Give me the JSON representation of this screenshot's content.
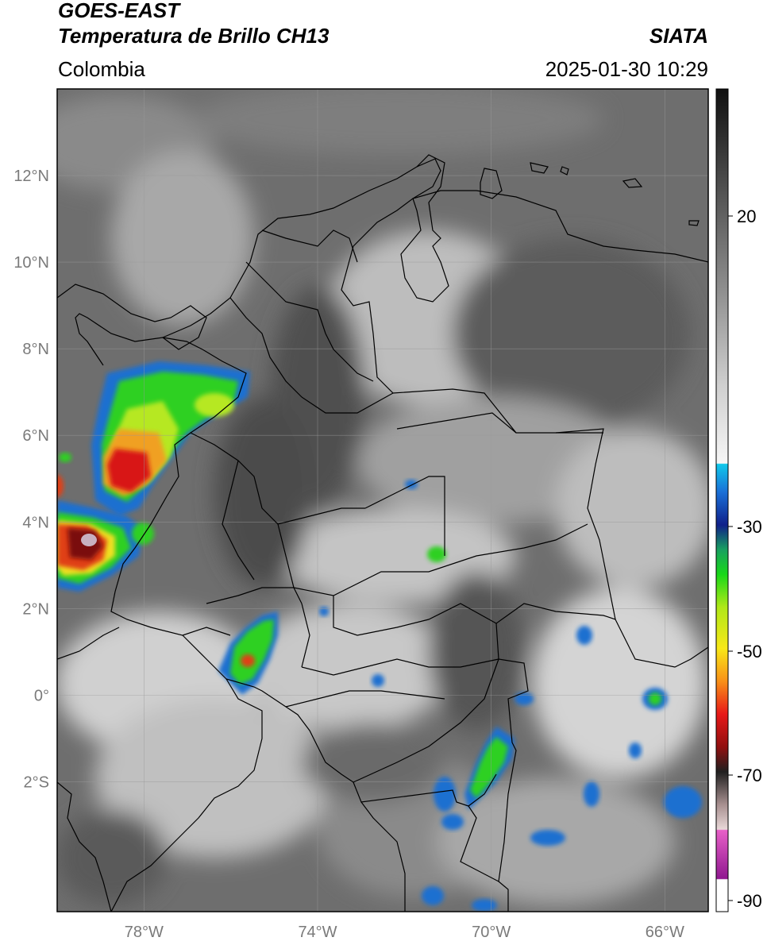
{
  "header": {
    "satellite": "GOES-EAST",
    "product": "Temperatura de Brillo CH13",
    "source": "SIATA",
    "region": "Colombia",
    "datetime": "2025-01-30 10:29"
  },
  "map": {
    "lon_range": [
      -80,
      -65
    ],
    "lat_range": [
      -5,
      14
    ],
    "lat_ticks": [
      {
        "value": 12,
        "label": "12°N"
      },
      {
        "value": 10,
        "label": "10°N"
      },
      {
        "value": 8,
        "label": "8°N"
      },
      {
        "value": 6,
        "label": "6°N"
      },
      {
        "value": 4,
        "label": "4°N"
      },
      {
        "value": 2,
        "label": "2°N"
      },
      {
        "value": 0,
        "label": "0°"
      },
      {
        "value": -2,
        "label": "2°S"
      }
    ],
    "lon_ticks": [
      {
        "value": -78,
        "label": "78°W"
      },
      {
        "value": -74,
        "label": "74°W"
      },
      {
        "value": -70,
        "label": "70°W"
      },
      {
        "value": -66,
        "label": "66°W"
      }
    ],
    "grid": true,
    "colors": {
      "background_gray": "#6e6e6e",
      "border": "#000000",
      "convective_green": "#2fd020",
      "convective_blue": "#1f6fd0",
      "cold_red": "#d81818",
      "cold_yellow": "#f0e020"
    },
    "cold_cloud_clusters": [
      {
        "lon": -78.7,
        "lat": 6.3,
        "level": -60
      },
      {
        "lon": -79.3,
        "lat": 3.6,
        "level": -75
      },
      {
        "lon": -77.0,
        "lat": 7.1,
        "level": -40
      },
      {
        "lon": -75.5,
        "lat": 1.0,
        "level": -45
      },
      {
        "lon": -69.6,
        "lat": -1.4,
        "level": -40
      },
      {
        "lon": -65.7,
        "lat": -0.1,
        "level": -35
      },
      {
        "lon": -71.3,
        "lat": 3.3,
        "level": -35
      }
    ]
  },
  "colorbar": {
    "ticks": [
      {
        "value": 20,
        "label": "20"
      },
      {
        "value": -30,
        "label": "-30"
      },
      {
        "value": -50,
        "label": "-50"
      },
      {
        "value": -70,
        "label": "-70"
      },
      {
        "value": -90,
        "label": "-90"
      }
    ]
  }
}
